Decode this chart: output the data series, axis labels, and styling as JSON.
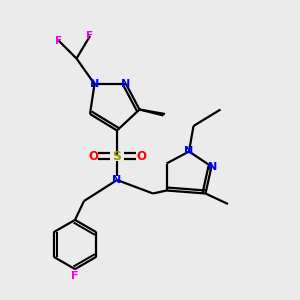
{
  "bg_color": "#ebebeb",
  "atom_colors": {
    "N": "#0000ff",
    "O": "#ff0000",
    "S": "#999900",
    "F": "#ee00ee",
    "C": "#000000"
  },
  "bond_color": "#000000",
  "lw": 1.6
}
